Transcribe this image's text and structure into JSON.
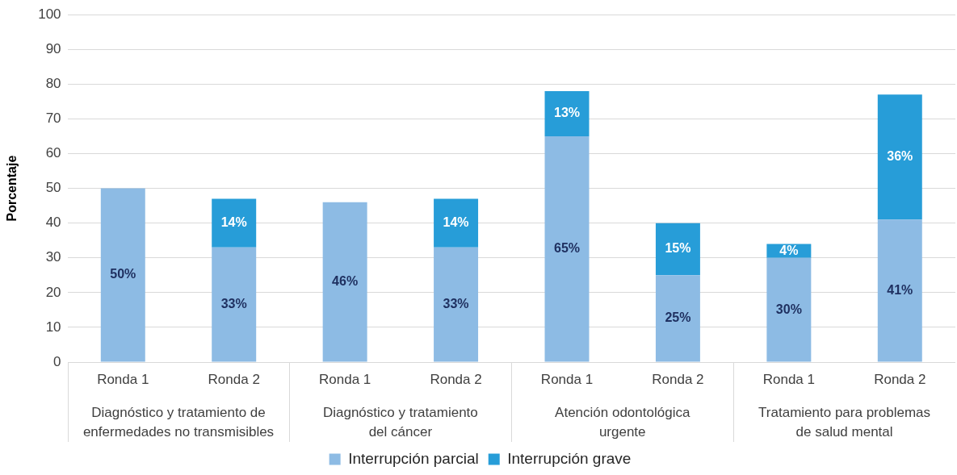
{
  "chart_data": {
    "type": "bar",
    "stacked": true,
    "ylabel": "Porcentaje",
    "categories": [
      "Ronda 1",
      "Ronda 2",
      "Ronda 1",
      "Ronda 2",
      "Ronda 1",
      "Ronda 2",
      "Ronda 1",
      "Ronda 2"
    ],
    "series": [
      {
        "name": "Interrupción parcial",
        "color": "#8dbbe4",
        "values": [
          50,
          33,
          46,
          33,
          65,
          25,
          30,
          41
        ],
        "value_labels": [
          "50%",
          "33%",
          "46%",
          "33%",
          "65%",
          "25%",
          "30%",
          "41%"
        ]
      },
      {
        "name": "Interrupción grave",
        "color": "#279dd8",
        "values": [
          null,
          14,
          null,
          14,
          13,
          15,
          4,
          36
        ],
        "value_labels": [
          null,
          "14%",
          null,
          "14%",
          "13%",
          "15%",
          "4%",
          "36%"
        ]
      }
    ],
    "ylim": [
      0,
      100
    ],
    "yticks": [
      0,
      10,
      20,
      30,
      40,
      50,
      60,
      70,
      80,
      90,
      100
    ],
    "grid": "y",
    "legend": "bottom",
    "annotations": [
      "Diagnóstico y tratamiento de\nenfermedades no transmisibles",
      "Diagnóstico y tratamiento\ndel cáncer",
      "Atención odontológica\nurgente",
      "Tratamiento para problemas\nde salud mental"
    ]
  }
}
